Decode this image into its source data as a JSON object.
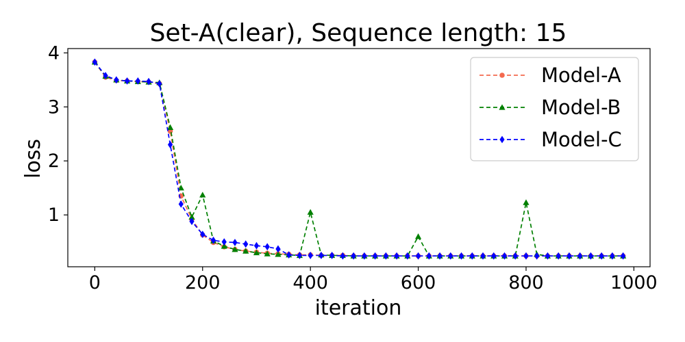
{
  "chart_data": {
    "type": "line",
    "title": "Set-A(clear), Sequence length: 15",
    "xlabel": "iteration",
    "ylabel": "loss",
    "xlim": [
      -50,
      1030
    ],
    "ylim": [
      0.04,
      4.08
    ],
    "xticks": [
      0,
      200,
      400,
      600,
      800,
      1000
    ],
    "yticks": [
      1,
      2,
      3,
      4
    ],
    "grid": false,
    "legend_position": "top-right",
    "x": [
      0,
      20,
      40,
      60,
      80,
      100,
      120,
      140,
      160,
      180,
      200,
      220,
      240,
      260,
      280,
      300,
      320,
      340,
      360,
      380,
      400,
      420,
      440,
      460,
      480,
      500,
      520,
      540,
      560,
      580,
      600,
      620,
      640,
      660,
      680,
      700,
      720,
      740,
      760,
      780,
      800,
      820,
      840,
      860,
      880,
      900,
      920,
      940,
      960,
      980
    ],
    "series": [
      {
        "name": "Model-A",
        "color": "#f4694e",
        "marker": "circle",
        "values": [
          3.83,
          3.55,
          3.49,
          3.48,
          3.47,
          3.46,
          3.43,
          2.55,
          1.35,
          0.92,
          0.63,
          0.49,
          0.41,
          0.36,
          0.33,
          0.31,
          0.29,
          0.28,
          0.27,
          0.26,
          0.26,
          0.25,
          0.25,
          0.25,
          0.24,
          0.24,
          0.24,
          0.24,
          0.24,
          0.24,
          0.24,
          0.24,
          0.24,
          0.24,
          0.24,
          0.24,
          0.24,
          0.24,
          0.24,
          0.24,
          0.24,
          0.24,
          0.24,
          0.24,
          0.24,
          0.24,
          0.24,
          0.24,
          0.24,
          0.24
        ]
      },
      {
        "name": "Model-B",
        "color": "#008000",
        "marker": "triangle",
        "values": [
          3.83,
          3.57,
          3.5,
          3.48,
          3.47,
          3.46,
          3.45,
          2.62,
          1.5,
          0.96,
          1.37,
          0.52,
          0.42,
          0.36,
          0.33,
          0.3,
          0.28,
          0.27,
          0.26,
          0.25,
          1.05,
          0.26,
          0.25,
          0.25,
          0.24,
          0.24,
          0.24,
          0.24,
          0.24,
          0.24,
          0.6,
          0.24,
          0.24,
          0.24,
          0.24,
          0.24,
          0.24,
          0.24,
          0.24,
          0.24,
          1.23,
          0.27,
          0.24,
          0.24,
          0.24,
          0.24,
          0.24,
          0.24,
          0.24,
          0.24
        ]
      },
      {
        "name": "Model-C",
        "color": "#0000ff",
        "marker": "diamond",
        "values": [
          3.83,
          3.58,
          3.5,
          3.48,
          3.48,
          3.47,
          3.43,
          2.3,
          1.2,
          0.88,
          0.64,
          0.53,
          0.5,
          0.49,
          0.46,
          0.43,
          0.41,
          0.37,
          0.26,
          0.25,
          0.25,
          0.25,
          0.25,
          0.24,
          0.24,
          0.24,
          0.24,
          0.24,
          0.24,
          0.24,
          0.24,
          0.24,
          0.24,
          0.24,
          0.24,
          0.24,
          0.24,
          0.24,
          0.24,
          0.24,
          0.24,
          0.24,
          0.24,
          0.24,
          0.24,
          0.24,
          0.24,
          0.24,
          0.24,
          0.24
        ]
      }
    ]
  }
}
